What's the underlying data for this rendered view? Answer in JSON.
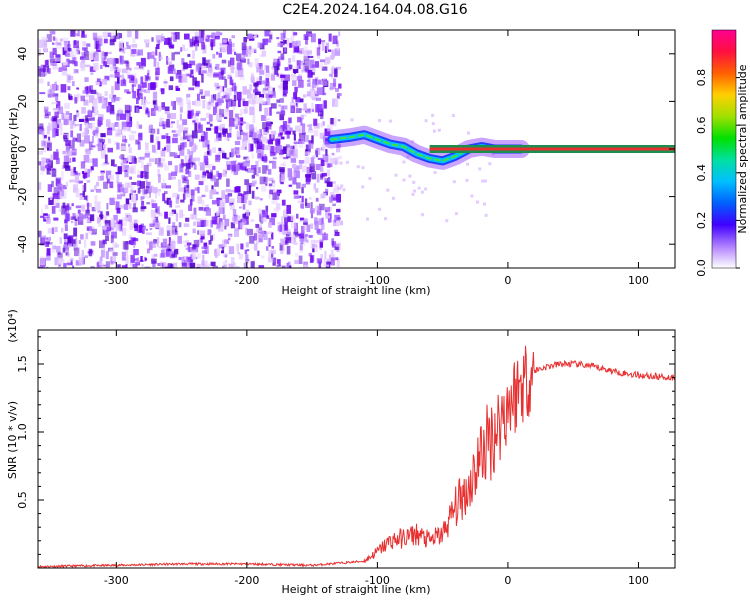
{
  "title": "C2E4.2024.164.04.08.G16",
  "colors": {
    "snr_line": "#e83030",
    "carrier_line": "#e83030",
    "carrier_band": "#1b8f4f",
    "colormap": [
      "#ffffff",
      "#f0d0ff",
      "#c060ff",
      "#7000e0",
      "#2020ff",
      "#00b0ff",
      "#00e0c0",
      "#00e000",
      "#c0e000",
      "#ffd000",
      "#ff8000",
      "#ff2000",
      "#ff0060",
      "#ff00a0"
    ]
  },
  "chart_data": [
    {
      "type": "heatmap",
      "title": "C2E4.2024.164.04.08.G16",
      "xlabel": "Height of straight line (km)",
      "ylabel": "Frequency (Hz)",
      "xlim": [
        -360,
        128
      ],
      "ylim": [
        -50,
        50
      ],
      "xticks": [
        -300,
        -200,
        -100,
        0,
        100
      ],
      "yticks": [
        -40,
        -20,
        0,
        20,
        40
      ],
      "colorbar": {
        "label": "Normalized spectral amplitude",
        "range": [
          0.0,
          1.0
        ],
        "ticks": [
          "0.0",
          "0.2",
          "0.4",
          "0.6",
          "0.8"
        ]
      },
      "ridge": {
        "x": [
          -135,
          -120,
          -110,
          -100,
          -90,
          -80,
          -70,
          -60,
          -50,
          -40,
          -30,
          -20,
          -10,
          0,
          10
        ],
        "y": [
          4,
          5,
          6,
          4,
          2,
          1,
          -2,
          -4,
          -5,
          -3,
          0,
          1,
          0,
          0,
          0
        ]
      },
      "carrier_line": {
        "from_x": -60,
        "to_x": 128,
        "y": 0
      },
      "noise_region_x": [
        -360,
        -130
      ]
    },
    {
      "type": "line",
      "xlabel": "Height of straight line (km)",
      "ylabel": "SNR (10 * v/v)",
      "multiplier": "(x10⁴)",
      "xlim": [
        -360,
        128
      ],
      "ylim": [
        0,
        1.75
      ],
      "xticks": [
        -300,
        -200,
        -100,
        0,
        100
      ],
      "yticks": [
        0.5,
        1.0,
        1.5
      ],
      "ytick_labels": [
        "0.5",
        "1.0",
        "1.5"
      ],
      "series": [
        {
          "x": [
            -360,
            -300,
            -250,
            -200,
            -150,
            -110,
            -100,
            -90,
            -80,
            -70,
            -60,
            -50,
            -40,
            -30,
            -20,
            -10,
            0,
            10,
            20,
            30,
            40,
            50,
            60,
            70,
            80,
            90,
            100,
            110,
            128
          ],
          "y": [
            0.01,
            0.02,
            0.03,
            0.03,
            0.02,
            0.05,
            0.12,
            0.2,
            0.22,
            0.25,
            0.2,
            0.25,
            0.45,
            0.6,
            0.85,
            1.0,
            1.2,
            1.35,
            1.45,
            1.48,
            1.5,
            1.5,
            1.49,
            1.47,
            1.45,
            1.43,
            1.42,
            1.41,
            1.4
          ]
        }
      ]
    }
  ]
}
